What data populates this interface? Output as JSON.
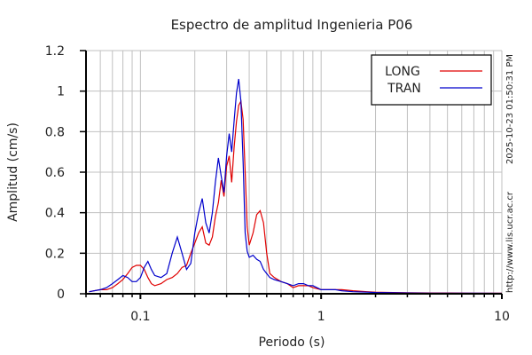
{
  "chart_data": {
    "type": "line",
    "title": "Espectro de amplitud Ingenieria P06",
    "xlabel": "Periodo (s)",
    "ylabel": "Amplitud (cm/s)",
    "xscale": "log",
    "xlim": [
      0.05,
      10
    ],
    "ylim": [
      0,
      1.2
    ],
    "xticks": [
      {
        "v": 0.1,
        "label": "0.1"
      },
      {
        "v": 1,
        "label": "1"
      },
      {
        "v": 10,
        "label": "10"
      }
    ],
    "yticks": [
      {
        "v": 0,
        "label": "0"
      },
      {
        "v": 0.2,
        "label": "0.2"
      },
      {
        "v": 0.4,
        "label": "0.4"
      },
      {
        "v": 0.6,
        "label": "0.6"
      },
      {
        "v": 0.8,
        "label": "0.8"
      },
      {
        "v": 1,
        "label": "1"
      },
      {
        "v": 1.2,
        "label": "1.2"
      }
    ],
    "grid": true,
    "legend_position": "upper right",
    "series": [
      {
        "name": "LONG",
        "color": "#e00000",
        "x": [
          0.052,
          0.06,
          0.065,
          0.07,
          0.075,
          0.08,
          0.085,
          0.09,
          0.095,
          0.1,
          0.105,
          0.11,
          0.115,
          0.12,
          0.13,
          0.14,
          0.15,
          0.16,
          0.17,
          0.18,
          0.19,
          0.2,
          0.21,
          0.22,
          0.23,
          0.24,
          0.25,
          0.26,
          0.27,
          0.28,
          0.29,
          0.3,
          0.31,
          0.32,
          0.33,
          0.34,
          0.35,
          0.36,
          0.37,
          0.38,
          0.39,
          0.4,
          0.42,
          0.44,
          0.46,
          0.48,
          0.5,
          0.52,
          0.55,
          0.6,
          0.65,
          0.7,
          0.75,
          0.8,
          0.85,
          0.9,
          1.0,
          1.1,
          1.2,
          1.3,
          1.5,
          1.8,
          2.0,
          2.5,
          3.0,
          4.0,
          5.0,
          7.0,
          10.0
        ],
        "values": [
          0.01,
          0.02,
          0.02,
          0.03,
          0.05,
          0.07,
          0.1,
          0.13,
          0.14,
          0.14,
          0.12,
          0.08,
          0.05,
          0.04,
          0.05,
          0.07,
          0.08,
          0.1,
          0.13,
          0.14,
          0.2,
          0.25,
          0.3,
          0.33,
          0.25,
          0.24,
          0.28,
          0.38,
          0.45,
          0.56,
          0.48,
          0.63,
          0.68,
          0.55,
          0.72,
          0.85,
          0.93,
          0.95,
          0.86,
          0.6,
          0.33,
          0.24,
          0.3,
          0.39,
          0.41,
          0.35,
          0.2,
          0.1,
          0.08,
          0.06,
          0.05,
          0.03,
          0.04,
          0.04,
          0.04,
          0.03,
          0.02,
          0.02,
          0.02,
          0.02,
          0.015,
          0.01,
          0.008,
          0.006,
          0.005,
          0.004,
          0.004,
          0.003,
          0.003
        ]
      },
      {
        "name": "TRAN",
        "color": "#0000cc",
        "x": [
          0.052,
          0.06,
          0.065,
          0.07,
          0.075,
          0.08,
          0.085,
          0.09,
          0.095,
          0.1,
          0.105,
          0.11,
          0.115,
          0.12,
          0.13,
          0.14,
          0.15,
          0.16,
          0.17,
          0.18,
          0.19,
          0.2,
          0.21,
          0.22,
          0.23,
          0.24,
          0.25,
          0.26,
          0.27,
          0.28,
          0.29,
          0.3,
          0.31,
          0.32,
          0.33,
          0.34,
          0.35,
          0.36,
          0.37,
          0.38,
          0.39,
          0.4,
          0.42,
          0.44,
          0.46,
          0.48,
          0.5,
          0.52,
          0.55,
          0.6,
          0.65,
          0.7,
          0.75,
          0.8,
          0.85,
          0.9,
          1.0,
          1.1,
          1.2,
          1.3,
          1.5,
          1.8,
          2.0,
          2.5,
          3.0,
          4.0,
          5.0,
          7.0,
          10.0
        ],
        "values": [
          0.01,
          0.02,
          0.03,
          0.05,
          0.07,
          0.09,
          0.08,
          0.06,
          0.06,
          0.08,
          0.13,
          0.16,
          0.12,
          0.09,
          0.08,
          0.1,
          0.2,
          0.28,
          0.2,
          0.12,
          0.15,
          0.3,
          0.4,
          0.47,
          0.35,
          0.3,
          0.4,
          0.55,
          0.67,
          0.58,
          0.5,
          0.68,
          0.79,
          0.7,
          0.85,
          0.99,
          1.06,
          0.95,
          0.65,
          0.3,
          0.21,
          0.18,
          0.19,
          0.17,
          0.16,
          0.12,
          0.1,
          0.08,
          0.07,
          0.06,
          0.05,
          0.04,
          0.05,
          0.05,
          0.04,
          0.04,
          0.02,
          0.02,
          0.02,
          0.015,
          0.01,
          0.008,
          0.006,
          0.005,
          0.004,
          0.003,
          0.003,
          0.003,
          0.002
        ]
      }
    ]
  },
  "side_text": {
    "timestamp": "2025-10-23 01:50:31 PM",
    "url": "http://www.lis.ucr.ac.cr"
  },
  "colors": {
    "long": "#e00000",
    "tran": "#0000cc",
    "grid": "#c0c0c0",
    "axis": "#000000"
  }
}
